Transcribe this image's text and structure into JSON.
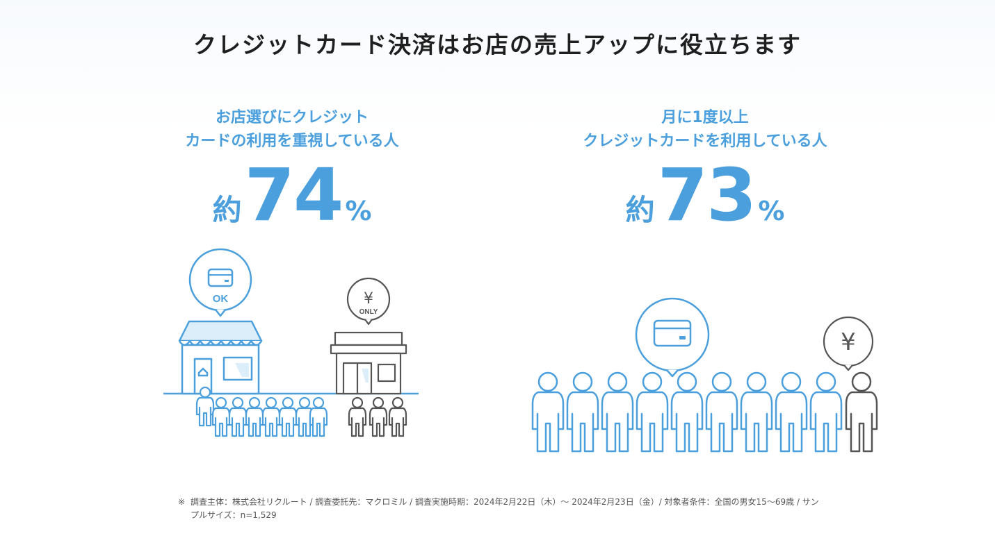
{
  "title": "クレジットカード決済はお店の売上アップに役立ちます",
  "stats": [
    {
      "label_line1": "お店選びにクレジット",
      "label_line2": "カードの利用を重視している人",
      "prefix": "約",
      "value": "74",
      "unit": "%"
    },
    {
      "label_line1": "月に1度以上",
      "label_line2": "クレジットカードを利用している人",
      "prefix": "約",
      "value": "73",
      "unit": "%"
    }
  ],
  "left_illustration": {
    "card_shop_badge": "OK",
    "cash_shop_currency": "¥",
    "cash_shop_badge": "ONLY"
  },
  "right_illustration": {
    "cash_bubble_currency": "¥"
  },
  "footnote": {
    "mark": "※",
    "text": "調査主体：株式会社リクルート / 調査委託先：マクロミル / 調査実施時期：2024年2月22日（木）〜 2024年2月23日（金）/ 対象者条件：全国の男女15〜69歳 / サンプルサイズ：n=1,529"
  },
  "colors": {
    "accent_blue": "#4a9fdc",
    "light_blue": "#dceefa",
    "gray": "#555555"
  }
}
